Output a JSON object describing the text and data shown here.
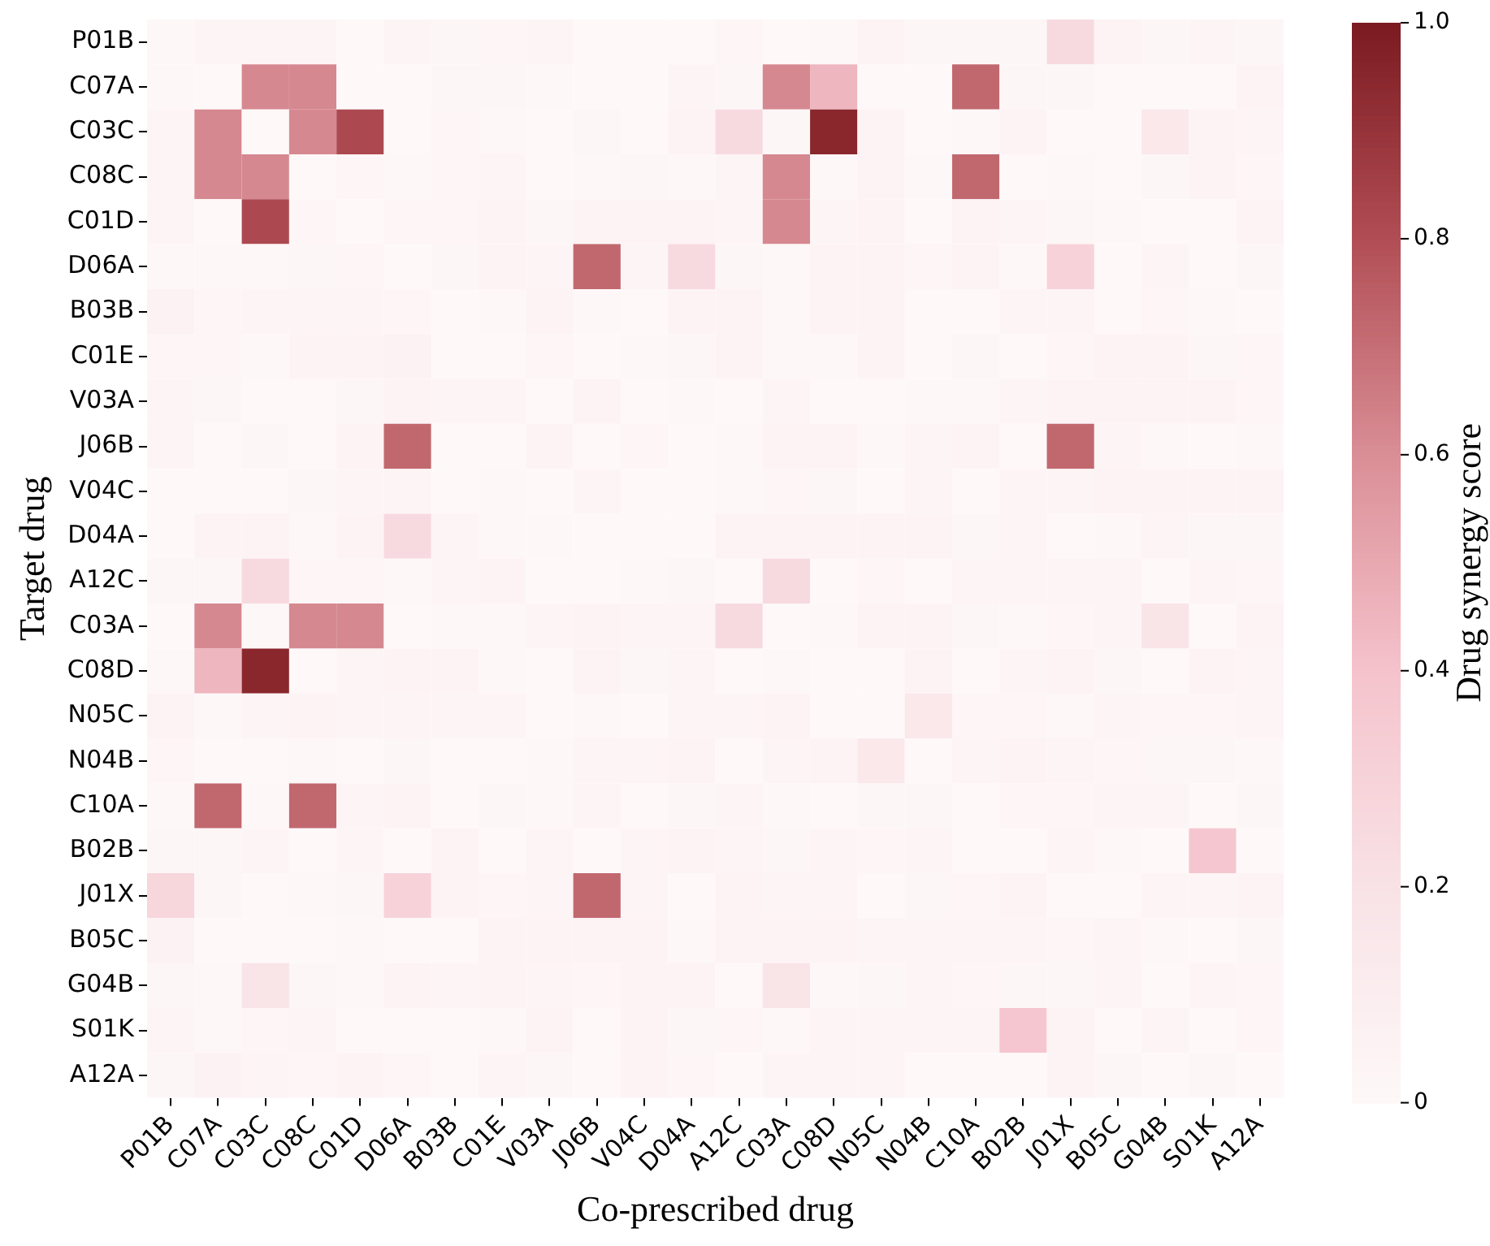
{
  "chart_data": {
    "type": "heatmap",
    "xlabel": "Co-prescribed drug",
    "ylabel": "Target drug",
    "clabel": "Drug synergy score",
    "categories": [
      "P01B",
      "C07A",
      "C03C",
      "C08C",
      "C01D",
      "D06A",
      "B03B",
      "C01E",
      "V03A",
      "J06B",
      "V04C",
      "D04A",
      "A12C",
      "C03A",
      "C08D",
      "N05C",
      "N04B",
      "C10A",
      "B02B",
      "J01X",
      "B05C",
      "G04B",
      "S01K",
      "A12A"
    ],
    "y_categories": [
      "P01B",
      "C07A",
      "C03C",
      "C08C",
      "C01D",
      "D06A",
      "B03B",
      "C01E",
      "V03A",
      "J06B",
      "V04C",
      "D04A",
      "A12C",
      "C03A",
      "C08D",
      "N05C",
      "N04B",
      "C10A",
      "B02B",
      "J01X",
      "B05C",
      "G04B",
      "S01K",
      "A12A"
    ],
    "clim": [
      0,
      1
    ],
    "cticks": [
      0,
      0.2,
      0.4,
      0.6,
      0.8,
      {
        "value": 1,
        "label": "1.0"
      }
    ],
    "cells": [
      [
        0.01,
        0.04,
        0.04,
        0.04,
        0,
        0.04,
        0.02,
        0.03,
        0.04,
        0,
        0,
        0,
        0.03,
        0,
        0.01,
        0.05,
        0.02,
        0.02,
        0.02,
        0.25,
        0.05,
        0.02,
        0.04,
        0.02
      ],
      [
        0.01,
        0,
        0.62,
        0.62,
        0,
        0,
        0.02,
        0.02,
        0.01,
        0,
        0,
        0.04,
        0.02,
        0.62,
        0.45,
        0,
        0,
        0.72,
        0.02,
        0.02,
        0,
        0,
        0,
        0.05
      ],
      [
        0.04,
        0.62,
        0,
        0.62,
        0.82,
        0,
        0.03,
        0.01,
        0,
        0.02,
        0,
        0.05,
        0.25,
        0.02,
        0.95,
        0.05,
        0,
        0.01,
        0.05,
        0,
        0,
        0.15,
        0.05,
        0.04
      ],
      [
        0.04,
        0.62,
        0.62,
        0,
        0.03,
        0.01,
        0.03,
        0.04,
        0,
        0.01,
        0.02,
        0.01,
        0.04,
        0.62,
        0.01,
        0.05,
        0.01,
        0.72,
        0,
        0.01,
        0,
        0.02,
        0.05,
        0.03
      ],
      [
        0.04,
        0,
        0.82,
        0.03,
        0,
        0.03,
        0.03,
        0.05,
        0.02,
        0.05,
        0.05,
        0.05,
        0.04,
        0.62,
        0.04,
        0.05,
        0,
        0.05,
        0.04,
        0.02,
        0.01,
        0,
        0,
        0.05
      ],
      [
        0.01,
        0.01,
        0.01,
        0.02,
        0.03,
        0,
        0.02,
        0.05,
        0.04,
        0.72,
        0.04,
        0.25,
        0.02,
        0.01,
        0.05,
        0.05,
        0.03,
        0.05,
        0.01,
        0.3,
        0,
        0.04,
        0,
        0.02
      ],
      [
        0.06,
        0.03,
        0.04,
        0.04,
        0.04,
        0.03,
        0,
        0.01,
        0.05,
        0.01,
        0,
        0.05,
        0.05,
        0.01,
        0.05,
        0.05,
        0,
        0,
        0.04,
        0.04,
        0,
        0.03,
        0.01,
        0
      ],
      [
        0.03,
        0.03,
        0.01,
        0.05,
        0.05,
        0.06,
        0,
        0,
        0.03,
        0,
        0.01,
        0.02,
        0.05,
        0.01,
        0.01,
        0.05,
        0,
        0.02,
        0,
        0.03,
        0.05,
        0.05,
        0.02,
        0.03
      ],
      [
        0.04,
        0.02,
        0,
        0,
        0.02,
        0.05,
        0.04,
        0.04,
        0,
        0.05,
        0,
        0.01,
        0,
        0.04,
        0,
        0,
        0.01,
        0.01,
        0.04,
        0.05,
        0.05,
        0.05,
        0.05,
        0.03
      ],
      [
        0.04,
        0,
        0.02,
        0,
        0.05,
        0.72,
        0,
        0,
        0.05,
        0,
        0.03,
        0,
        0.01,
        0.05,
        0.05,
        0.01,
        0.04,
        0.05,
        0,
        0.72,
        0.04,
        0.01,
        0,
        0.01
      ],
      [
        0,
        0,
        0,
        0.02,
        0.04,
        0.04,
        0,
        0.01,
        0,
        0.04,
        0,
        0,
        0.01,
        0.03,
        0.02,
        0,
        0.04,
        0,
        0.04,
        0.04,
        0.05,
        0.05,
        0.05,
        0.05
      ],
      [
        0,
        0.05,
        0.05,
        0.01,
        0.05,
        0.25,
        0.04,
        0.01,
        0.01,
        0,
        0,
        0,
        0.05,
        0.05,
        0.05,
        0.05,
        0.05,
        0.02,
        0.04,
        0,
        0.01,
        0.04,
        0.02,
        0.02
      ],
      [
        0.02,
        0.02,
        0.25,
        0.03,
        0.03,
        0.01,
        0.04,
        0.05,
        0,
        0,
        0.01,
        0.02,
        0,
        0.25,
        0,
        0.03,
        0,
        0.04,
        0.04,
        0.04,
        0.04,
        0,
        0.04,
        0.03
      ],
      [
        0,
        0.62,
        0.01,
        0.62,
        0.62,
        0,
        0.01,
        0.01,
        0.04,
        0.05,
        0.04,
        0.04,
        0.25,
        0,
        0.01,
        0.05,
        0.05,
        0.02,
        0.01,
        0.03,
        0.04,
        0.18,
        0,
        0.05
      ],
      [
        0.01,
        0.45,
        0.95,
        0,
        0.04,
        0.05,
        0.05,
        0.01,
        0,
        0.05,
        0.02,
        0.04,
        0,
        0.01,
        0,
        0,
        0.05,
        0,
        0.04,
        0.05,
        0.02,
        0,
        0.05,
        0.04
      ],
      [
        0.05,
        0.01,
        0.04,
        0.05,
        0.04,
        0.04,
        0.04,
        0.04,
        0,
        0.01,
        0,
        0.04,
        0.04,
        0.05,
        0,
        0,
        0.15,
        0.03,
        0.03,
        0.01,
        0.04,
        0.03,
        0.03,
        0.04
      ],
      [
        0.03,
        0,
        0,
        0.01,
        0,
        0.02,
        0,
        0,
        0.01,
        0.04,
        0.04,
        0.05,
        0,
        0.04,
        0.05,
        0.15,
        0,
        0.04,
        0.05,
        0.04,
        0.03,
        0.02,
        0.02,
        0.01
      ],
      [
        0.01,
        0.72,
        0.01,
        0.72,
        0.04,
        0.05,
        0,
        0.02,
        0.01,
        0.04,
        0,
        0.02,
        0.04,
        0.01,
        0,
        0.02,
        0.02,
        0,
        0.03,
        0.03,
        0.04,
        0.04,
        0,
        0.02
      ],
      [
        0.02,
        0.02,
        0.04,
        0,
        0.04,
        0,
        0.05,
        0,
        0.04,
        0,
        0.04,
        0.05,
        0.04,
        0.02,
        0.04,
        0.03,
        0.04,
        0,
        0,
        0.04,
        0.01,
        0,
        0.38,
        0
      ],
      [
        0.28,
        0.02,
        0,
        0.01,
        0.02,
        0.3,
        0.05,
        0.03,
        0.04,
        0.72,
        0.04,
        0,
        0.05,
        0.04,
        0.04,
        0,
        0.02,
        0.03,
        0.05,
        0,
        0,
        0.04,
        0.04,
        0.05
      ],
      [
        0.06,
        0,
        0,
        0,
        0.01,
        0,
        0,
        0.05,
        0.05,
        0.05,
        0.05,
        0.01,
        0.05,
        0.05,
        0.05,
        0.04,
        0.04,
        0.04,
        0.04,
        0.03,
        0.04,
        0.01,
        0,
        0.02
      ],
      [
        0.02,
        0.01,
        0.18,
        0.02,
        0.01,
        0.05,
        0.04,
        0.05,
        0.04,
        0.03,
        0.05,
        0.05,
        0,
        0.18,
        0.01,
        0.02,
        0.04,
        0.03,
        0.02,
        0.02,
        0.04,
        0,
        0.04,
        0.03
      ],
      [
        0.04,
        0.01,
        0.03,
        0.04,
        0,
        0,
        0,
        0.01,
        0.05,
        0,
        0.05,
        0.02,
        0.03,
        0.01,
        0.04,
        0.04,
        0.04,
        0.04,
        0.38,
        0.05,
        0,
        0.04,
        0,
        0.03
      ],
      [
        0.02,
        0.06,
        0.04,
        0.03,
        0.05,
        0.03,
        0,
        0.04,
        0.02,
        0,
        0.05,
        0.03,
        0,
        0.04,
        0.04,
        0.04,
        0,
        0,
        0,
        0.05,
        0.02,
        0,
        0.02,
        0
      ]
    ]
  }
}
